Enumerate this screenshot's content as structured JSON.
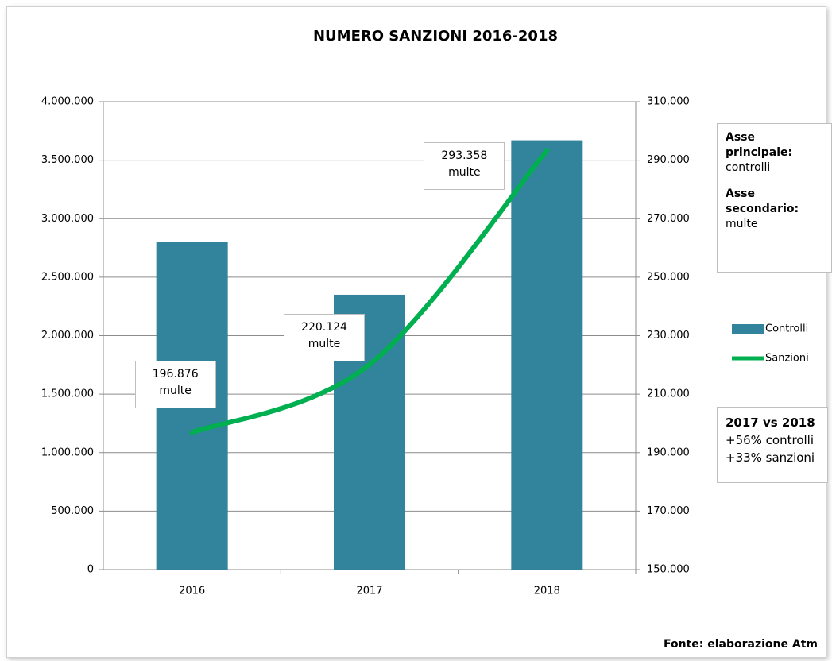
{
  "chart_data": {
    "type": "bar_line",
    "title": "NUMERO SANZIONI 2016-2018",
    "categories": [
      "2016",
      "2017",
      "2018"
    ],
    "series": [
      {
        "name": "Controlli",
        "type": "bar",
        "color": "#31849b",
        "values": [
          2800000,
          2350000,
          3670000
        ]
      },
      {
        "name": "Sanzioni",
        "type": "line",
        "axis": "y2",
        "color": "#00b050",
        "values": [
          196876,
          220124,
          293358
        ],
        "value_labels": [
          "196.876\nmulte",
          "220.124\nmulte",
          "293.358\nmulte"
        ]
      }
    ],
    "ylim": [
      0,
      4000000
    ],
    "yticks": [
      0,
      {
        "value": 500000,
        "label": "500.000"
      },
      {
        "value": 1000000,
        "label": "1.000.000"
      },
      {
        "value": 1500000,
        "label": "1.500.000"
      },
      {
        "value": 2000000,
        "label": "2.000.000"
      },
      {
        "value": 2500000,
        "label": "2.500.000"
      },
      {
        "value": 3000000,
        "label": "3.000.000"
      },
      {
        "value": 3500000,
        "label": "3.500.000"
      },
      {
        "value": 4000000,
        "label": "4.000.000"
      }
    ],
    "y2lim": [
      150000,
      310000
    ],
    "y2ticks": [
      {
        "value": 150000,
        "label": "150.000"
      },
      {
        "value": 170000,
        "label": "170.000"
      },
      {
        "value": 190000,
        "label": "190.000"
      },
      {
        "value": 210000,
        "label": "210.000"
      },
      {
        "value": 230000,
        "label": "230.000"
      },
      {
        "value": 250000,
        "label": "250.000"
      },
      {
        "value": 270000,
        "label": "270.000"
      },
      {
        "value": 290000,
        "label": "290.000"
      },
      {
        "value": 310000,
        "label": "310.000"
      }
    ],
    "grid": true,
    "legend": "right",
    "annotations": {
      "axes": [
        "Asse principale:",
        "controlli",
        "Asse secondario:",
        "multe"
      ],
      "comparison": [
        "2017 vs 2018",
        "+56% controlli",
        "+33% sanzioni"
      ],
      "source": "Fonte: elaborazione Atm"
    }
  }
}
